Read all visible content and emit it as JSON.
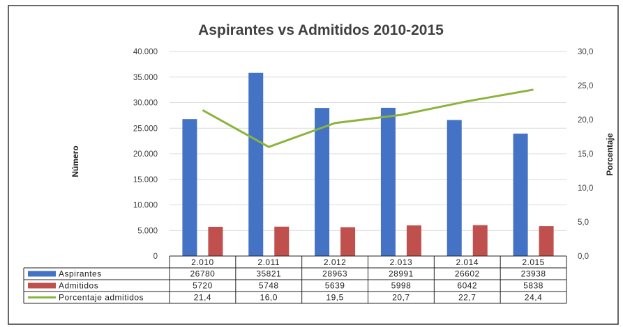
{
  "chart_data": {
    "type": "bar",
    "title": "Aspirantes vs Admitidos 2010-2015",
    "ylabel": "Número",
    "y2label": "Porcentaje",
    "ylim": [
      0,
      40000
    ],
    "y2lim": [
      0,
      30
    ],
    "y_ticks": [
      "0",
      "5.000",
      "10.000",
      "15.000",
      "20.000",
      "25.000",
      "30.000",
      "35.000",
      "40.000"
    ],
    "y2_ticks": [
      "0,0",
      "5,0",
      "10,0",
      "15,0",
      "20,0",
      "25,0",
      "30,0"
    ],
    "categories": [
      "2.010",
      "2.011",
      "2.012",
      "2.013",
      "2.014",
      "2.015"
    ],
    "grid": true,
    "legend": "data-table",
    "series": [
      {
        "name": "Aspirantes",
        "kind": "bar",
        "axis": "left",
        "color": "#4472c4",
        "values": [
          26780,
          35821,
          28963,
          28991,
          26602,
          23938
        ],
        "labels": [
          "26780",
          "35821",
          "28963",
          "28991",
          "26602",
          "23938"
        ]
      },
      {
        "name": "Admitidos",
        "kind": "bar",
        "axis": "left",
        "color": "#c0504d",
        "values": [
          5720,
          5748,
          5639,
          5998,
          6042,
          5838
        ],
        "labels": [
          "5720",
          "5748",
          "5639",
          "5998",
          "6042",
          "5838"
        ]
      },
      {
        "name": "Porcentaje admitidos",
        "kind": "line",
        "axis": "right",
        "color": "#8cb43c",
        "values": [
          21.4,
          16.0,
          19.5,
          20.7,
          22.7,
          24.4
        ],
        "labels": [
          "21,4",
          "16,0",
          "19,5",
          "20,7",
          "22,7",
          "24,4"
        ]
      }
    ]
  }
}
